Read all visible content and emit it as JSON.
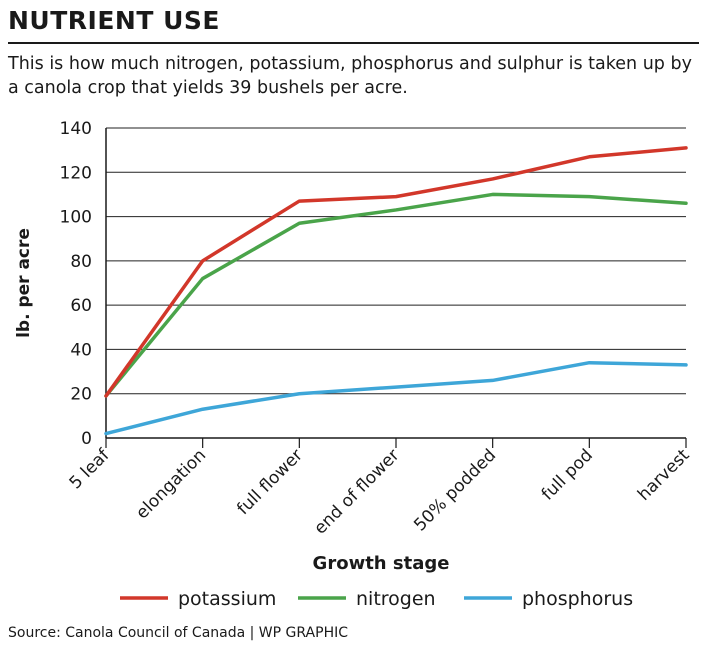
{
  "header": {
    "title": "NUTRIENT USE",
    "subtitle": "This is how much nitrogen, potassium, phosphorus and sulphur is taken up by a canola crop that yields 39 bushels per acre."
  },
  "footer": {
    "source": "Source: Canola Council of Canada  |  WP GRAPHIC"
  },
  "chart_data": {
    "type": "line",
    "title": "NUTRIENT USE",
    "subtitle": "This is how much nitrogen, potassium, phosphorus and sulphur is taken up by a canola crop that yields 39 bushels per acre.",
    "xlabel": "Growth stage",
    "ylabel": "lb. per acre",
    "categories": [
      "5 leaf",
      "elongation",
      "full flower",
      "end of flower",
      "50% podded",
      "full pod",
      "harvest"
    ],
    "ylim": [
      0,
      140
    ],
    "yticks": [
      0,
      20,
      40,
      60,
      80,
      100,
      120,
      140
    ],
    "grid": "horizontal",
    "legend_position": "bottom",
    "series": [
      {
        "name": "potassium",
        "color": "#d2372a",
        "values": [
          19,
          80,
          107,
          109,
          117,
          127,
          131
        ]
      },
      {
        "name": "nitrogen",
        "color": "#4aa44a",
        "values": [
          19,
          72,
          97,
          103,
          110,
          109,
          106
        ]
      },
      {
        "name": "phosphorus",
        "color": "#3ea6d8",
        "values": [
          2,
          13,
          20,
          23,
          26,
          34,
          33
        ]
      }
    ]
  }
}
